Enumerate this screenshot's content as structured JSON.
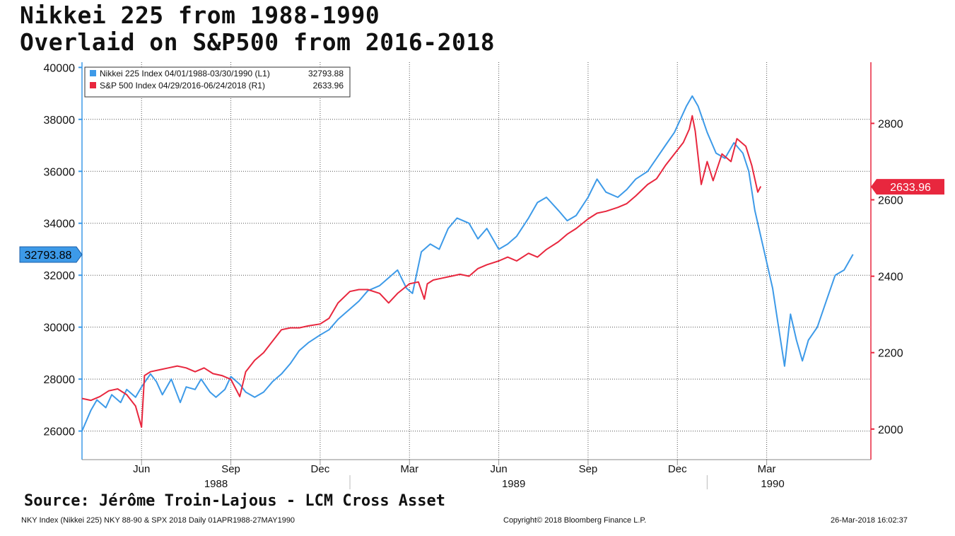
{
  "header": {
    "title_line1": "Nikkei 225 from 1988-1990",
    "title_line2": "Overlaid on S&P500 from 2016-2018"
  },
  "source_text": "Source: Jérôme Troin-Lajous - LCM Cross Asset",
  "footer": {
    "left": "NKY Index (Nikkei 225) NKY 88-90 & SPX 2018  Daily 01APR1988-27MAY1990",
    "center": "Copyright© 2018 Bloomberg Finance L.P.",
    "right": "26-Mar-2018 16:02:37"
  },
  "colors": {
    "nikkei": "#3d9ae8",
    "spx": "#e8273e",
    "grid": "#555555"
  },
  "chart_data": {
    "type": "line",
    "x_unit": "months since 1988-04-01",
    "xlim": [
      0,
      26.5
    ],
    "x_ticks": [
      {
        "label": "Jun",
        "x": 2
      },
      {
        "label": "Sep",
        "x": 5
      },
      {
        "label": "Dec",
        "x": 8
      },
      {
        "label": "Mar",
        "x": 11
      },
      {
        "label": "Jun",
        "x": 14
      },
      {
        "label": "Sep",
        "x": 17
      },
      {
        "label": "Dec",
        "x": 20
      },
      {
        "label": "Mar",
        "x": 23
      }
    ],
    "year_labels": [
      {
        "label": "1988",
        "x": 4.5
      },
      {
        "label": "1989",
        "x": 14.5
      },
      {
        "label": "1990",
        "x": 23.2
      }
    ],
    "left_axis": {
      "ylim": [
        24900,
        40200
      ],
      "ticks": [
        26000,
        28000,
        30000,
        32000,
        34000,
        36000,
        38000,
        40000
      ]
    },
    "right_axis": {
      "ylim": [
        1920,
        2960
      ],
      "ticks": [
        2000,
        2200,
        2400,
        2600,
        2800
      ]
    },
    "legend": [
      {
        "color": "#3d9ae8",
        "label": "Nikkei 225 Index 04/01/1988-03/30/1990 (L1)",
        "last": "32793.88"
      },
      {
        "color": "#e8273e",
        "label": "S&P 500 Index 04/29/2016-06/24/2018 (R1)",
        "last": "2633.96"
      }
    ],
    "last_value_tags": {
      "left": "32793.88",
      "right": "2633.96"
    },
    "series": [
      {
        "name": "Nikkei 225 Index 04/01/1988-03/30/1990",
        "axis": "left",
        "color": "#3d9ae8",
        "x": [
          0,
          0.3,
          0.5,
          0.8,
          1.0,
          1.3,
          1.5,
          1.8,
          2.0,
          2.3,
          2.5,
          2.7,
          3.0,
          3.3,
          3.5,
          3.8,
          4.0,
          4.3,
          4.5,
          4.8,
          5.0,
          5.3,
          5.5,
          5.8,
          6.1,
          6.4,
          6.7,
          7.0,
          7.3,
          7.6,
          8.0,
          8.3,
          8.6,
          9.0,
          9.3,
          9.6,
          10.0,
          10.3,
          10.6,
          10.9,
          11.1,
          11.4,
          11.7,
          12.0,
          12.3,
          12.6,
          13.0,
          13.3,
          13.6,
          14.0,
          14.3,
          14.6,
          15.0,
          15.3,
          15.6,
          16.0,
          16.3,
          16.6,
          17.0,
          17.3,
          17.6,
          18.0,
          18.3,
          18.6,
          19.0,
          19.3,
          19.6,
          19.9,
          20.1,
          20.3,
          20.5,
          20.7,
          21.0,
          21.3,
          21.6,
          21.9,
          22.2,
          22.4,
          22.6,
          22.8,
          23.0,
          23.2,
          23.4,
          23.6,
          23.8,
          24.0,
          24.2,
          24.4,
          24.7,
          25.0,
          25.3,
          25.6,
          25.9
        ],
        "values": [
          26000,
          26800,
          27200,
          26900,
          27400,
          27100,
          27600,
          27300,
          27700,
          28200,
          27900,
          27400,
          28000,
          27100,
          27700,
          27600,
          28000,
          27500,
          27300,
          27600,
          28100,
          27800,
          27500,
          27300,
          27500,
          27900,
          28200,
          28600,
          29100,
          29400,
          29700,
          29900,
          30300,
          30700,
          31000,
          31400,
          31600,
          31900,
          32200,
          31500,
          31300,
          32900,
          33200,
          33000,
          33800,
          34200,
          34000,
          33400,
          33800,
          33000,
          33200,
          33500,
          34200,
          34800,
          35000,
          34500,
          34100,
          34300,
          35000,
          35700,
          35200,
          35000,
          35300,
          35700,
          36000,
          36500,
          37000,
          37500,
          38000,
          38500,
          38900,
          38500,
          37500,
          36700,
          36500,
          37100,
          36700,
          36000,
          34500,
          33500,
          32500,
          31500,
          30000,
          28500,
          30500,
          29500,
          28700,
          29500,
          30000,
          31000,
          32000,
          32200,
          32800
        ]
      },
      {
        "name": "S&P 500 Index 04/29/2016-06/24/2018",
        "axis": "right",
        "color": "#e8273e",
        "x": [
          0,
          0.3,
          0.6,
          0.9,
          1.2,
          1.5,
          1.8,
          2.0,
          2.1,
          2.3,
          2.6,
          2.9,
          3.2,
          3.5,
          3.8,
          4.1,
          4.4,
          4.7,
          5.0,
          5.3,
          5.5,
          5.8,
          6.1,
          6.4,
          6.7,
          7.0,
          7.3,
          7.6,
          8.0,
          8.3,
          8.6,
          9.0,
          9.3,
          9.6,
          10.0,
          10.3,
          10.6,
          11.0,
          11.3,
          11.5,
          11.6,
          11.8,
          12.1,
          12.4,
          12.7,
          13.0,
          13.3,
          13.6,
          14.0,
          14.3,
          14.6,
          15.0,
          15.3,
          15.6,
          16.0,
          16.3,
          16.6,
          17.0,
          17.3,
          17.6,
          18.0,
          18.3,
          18.6,
          19.0,
          19.3,
          19.6,
          20.0,
          20.2,
          20.4,
          20.5,
          20.6,
          20.8,
          21.0,
          21.2,
          21.5,
          21.8,
          22.0,
          22.3,
          22.5,
          22.7,
          22.8
        ],
        "values": [
          2080,
          2075,
          2085,
          2100,
          2105,
          2090,
          2060,
          2005,
          2140,
          2150,
          2155,
          2160,
          2165,
          2160,
          2150,
          2160,
          2145,
          2140,
          2130,
          2085,
          2150,
          2180,
          2200,
          2230,
          2260,
          2265,
          2265,
          2270,
          2275,
          2290,
          2330,
          2360,
          2365,
          2365,
          2355,
          2330,
          2355,
          2380,
          2385,
          2340,
          2380,
          2390,
          2395,
          2400,
          2405,
          2400,
          2420,
          2430,
          2440,
          2450,
          2440,
          2460,
          2450,
          2470,
          2490,
          2510,
          2525,
          2550,
          2565,
          2570,
          2580,
          2590,
          2610,
          2640,
          2655,
          2690,
          2730,
          2750,
          2785,
          2820,
          2780,
          2640,
          2700,
          2650,
          2720,
          2700,
          2760,
          2740,
          2690,
          2620,
          2635
        ]
      }
    ]
  }
}
